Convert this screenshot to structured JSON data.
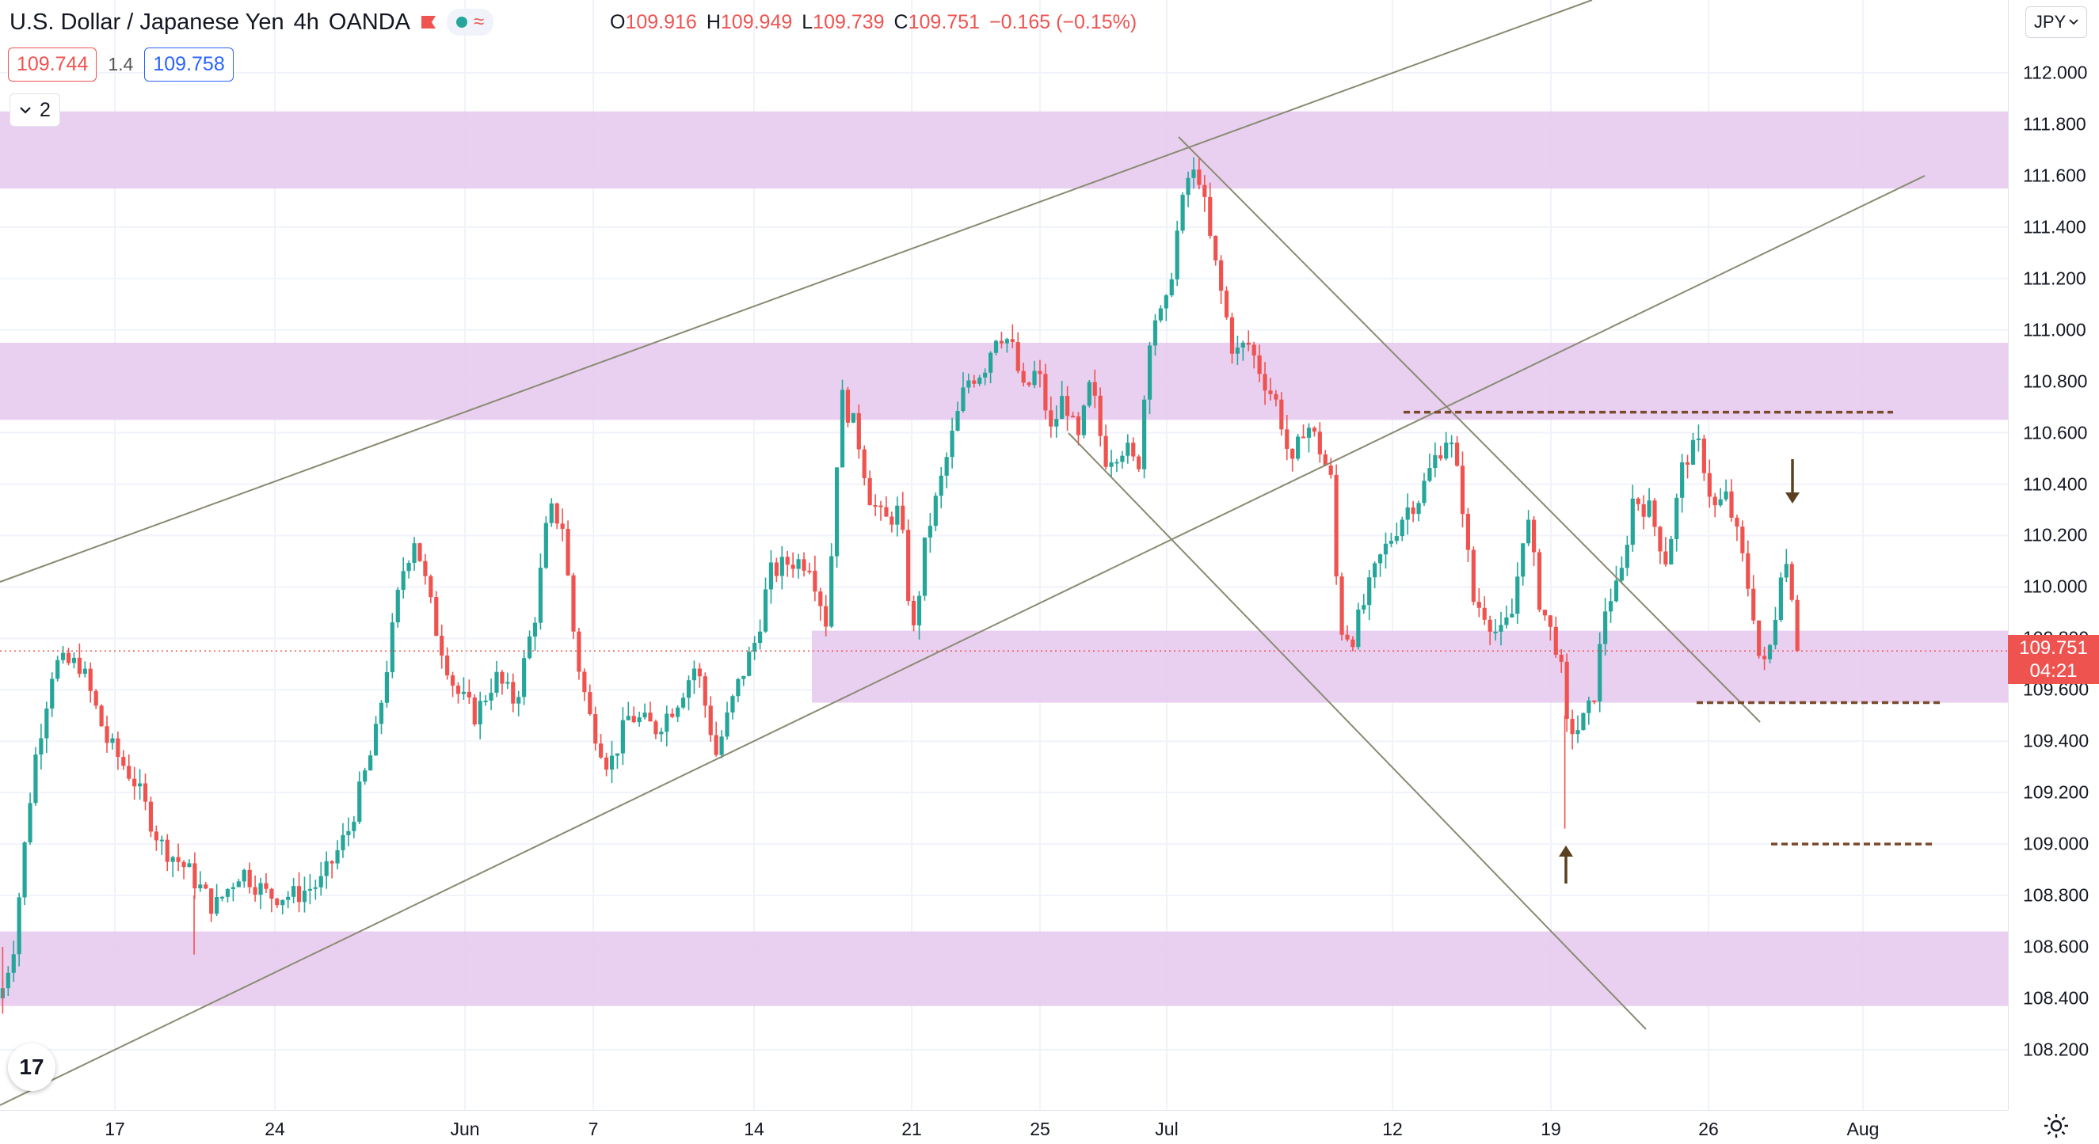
{
  "header": {
    "symbol_title": "U.S. Dollar / Japanese Yen",
    "interval": "4h",
    "exchange": "OANDA",
    "ohlc": {
      "open_label": "O",
      "open": "109.916",
      "high_label": "H",
      "high": "109.949",
      "low_label": "L",
      "low": "109.739",
      "close_label": "C",
      "close": "109.751",
      "change": "−0.165 (−0.15%)"
    }
  },
  "trade": {
    "bid": "109.744",
    "spread": "1.4",
    "ask": "109.758"
  },
  "collapse_button": {
    "count": "2"
  },
  "currency_button": {
    "label": "JPY"
  },
  "last_price": {
    "value": "109.751",
    "countdown": "04:21"
  },
  "logo": {
    "text": "17"
  },
  "colors": {
    "up": "#26a69a",
    "down": "#ef5350",
    "zone": "#e5c8ee",
    "trendline": "#8a8a72",
    "level": "#7a4a2a",
    "arrow": "#5a4020"
  },
  "icons": [
    "flag-icon",
    "chevron-down-icon",
    "settings-gear-icon",
    "tradingview-logo-icon",
    "arrow-up-icon",
    "arrow-down-icon"
  ],
  "chart_data": {
    "type": "candlestick",
    "title": "U.S. Dollar / Japanese Yen, 4h, OANDA",
    "y_axis": {
      "range": [
        108.1,
        112.15
      ],
      "ticks": [
        "112.000",
        "111.800",
        "111.600",
        "111.400",
        "111.200",
        "111.000",
        "110.800",
        "110.600",
        "110.400",
        "110.200",
        "110.000",
        "109.800",
        "109.600",
        "109.400",
        "109.200",
        "109.000",
        "108.800",
        "108.600",
        "108.400",
        "108.200"
      ]
    },
    "x_axis": {
      "ticks": [
        "17",
        "24",
        "Jun",
        "7",
        "14",
        "21",
        "25",
        "Jul",
        "12",
        "19",
        "26",
        "Aug"
      ]
    },
    "zones": [
      {
        "from": 111.55,
        "to": 111.85
      },
      {
        "from": 110.65,
        "to": 110.95
      },
      {
        "from": 109.55,
        "to": 109.83
      },
      {
        "from": 108.37,
        "to": 108.66
      }
    ],
    "path_points": [
      [
        0,
        108.4
      ],
      [
        10,
        108.6
      ],
      [
        25,
        109.3
      ],
      [
        40,
        109.7
      ],
      [
        60,
        109.7
      ],
      [
        80,
        109.4
      ],
      [
        100,
        109.25
      ],
      [
        120,
        109.0
      ],
      [
        140,
        108.9
      ],
      [
        160,
        108.75
      ],
      [
        180,
        108.9
      ],
      [
        200,
        108.8
      ],
      [
        220,
        108.8
      ],
      [
        240,
        108.85
      ],
      [
        260,
        109.05
      ],
      [
        280,
        109.4
      ],
      [
        300,
        110.05
      ],
      [
        310,
        110.2
      ],
      [
        325,
        109.85
      ],
      [
        340,
        109.6
      ],
      [
        355,
        109.5
      ],
      [
        370,
        109.65
      ],
      [
        385,
        109.55
      ],
      [
        400,
        109.9
      ],
      [
        410,
        110.3
      ],
      [
        420,
        110.25
      ],
      [
        430,
        109.75
      ],
      [
        440,
        109.5
      ],
      [
        455,
        109.3
      ],
      [
        470,
        109.5
      ],
      [
        490,
        109.45
      ],
      [
        505,
        109.55
      ],
      [
        520,
        109.7
      ],
      [
        535,
        109.35
      ],
      [
        550,
        109.6
      ],
      [
        565,
        109.8
      ],
      [
        575,
        110.05
      ],
      [
        590,
        110.1
      ],
      [
        605,
        110.1
      ],
      [
        618,
        109.85
      ],
      [
        628,
        110.75
      ],
      [
        640,
        110.6
      ],
      [
        650,
        110.35
      ],
      [
        660,
        110.25
      ],
      [
        672,
        110.3
      ],
      [
        682,
        109.8
      ],
      [
        692,
        110.2
      ],
      [
        700,
        110.35
      ],
      [
        712,
        110.6
      ],
      [
        722,
        110.8
      ],
      [
        735,
        110.85
      ],
      [
        745,
        111.0
      ],
      [
        755,
        110.95
      ],
      [
        765,
        110.75
      ],
      [
        775,
        110.85
      ],
      [
        785,
        110.6
      ],
      [
        795,
        110.75
      ],
      [
        805,
        110.55
      ],
      [
        815,
        110.8
      ],
      [
        825,
        110.5
      ],
      [
        840,
        110.55
      ],
      [
        850,
        110.45
      ],
      [
        860,
        111.05
      ],
      [
        870,
        111.05
      ],
      [
        880,
        111.4
      ],
      [
        888,
        111.6
      ],
      [
        896,
        111.6
      ],
      [
        904,
        111.35
      ],
      [
        912,
        111.15
      ],
      [
        922,
        110.9
      ],
      [
        932,
        110.95
      ],
      [
        945,
        110.8
      ],
      [
        955,
        110.7
      ],
      [
        965,
        110.45
      ],
      [
        975,
        110.65
      ],
      [
        985,
        110.55
      ],
      [
        995,
        110.4
      ],
      [
        1000,
        109.85
      ],
      [
        1010,
        109.8
      ],
      [
        1020,
        109.95
      ],
      [
        1030,
        110.1
      ],
      [
        1040,
        110.2
      ],
      [
        1050,
        110.3
      ],
      [
        1060,
        110.35
      ],
      [
        1072,
        110.5
      ],
      [
        1082,
        110.6
      ],
      [
        1092,
        110.35
      ],
      [
        1100,
        109.95
      ],
      [
        1110,
        109.9
      ],
      [
        1120,
        109.8
      ],
      [
        1130,
        109.9
      ],
      [
        1140,
        110.3
      ],
      [
        1150,
        109.95
      ],
      [
        1160,
        109.8
      ],
      [
        1165,
        109.75
      ],
      [
        1170,
        109.45
      ],
      [
        1180,
        109.45
      ],
      [
        1190,
        109.55
      ],
      [
        1200,
        109.95
      ],
      [
        1210,
        110.0
      ],
      [
        1220,
        110.35
      ],
      [
        1232,
        110.3
      ],
      [
        1245,
        110.1
      ],
      [
        1258,
        110.5
      ],
      [
        1270,
        110.55
      ],
      [
        1280,
        110.3
      ],
      [
        1290,
        110.35
      ],
      [
        1300,
        110.15
      ],
      [
        1310,
        109.9
      ],
      [
        1316,
        109.65
      ],
      [
        1324,
        109.8
      ],
      [
        1332,
        110.15
      ],
      [
        1340,
        109.95
      ],
      [
        1345,
        109.78
      ]
    ]
  }
}
